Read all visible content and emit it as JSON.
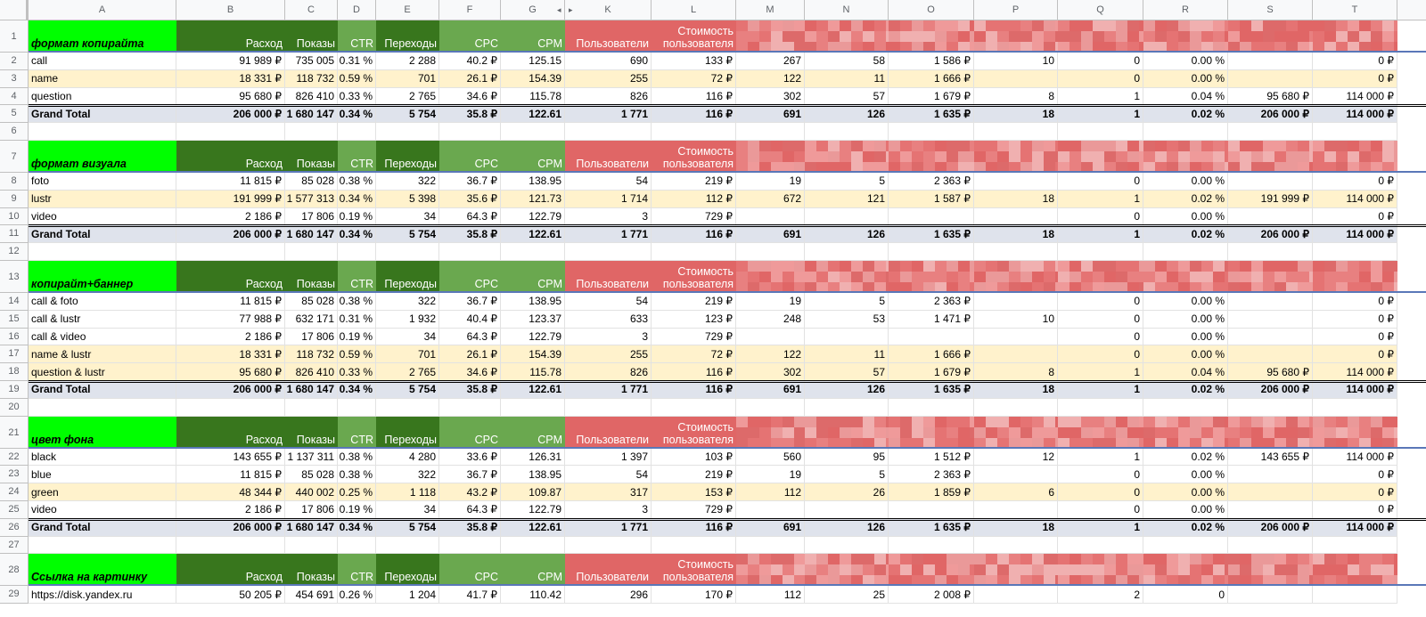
{
  "columns": [
    "A",
    "B",
    "C",
    "D",
    "E",
    "F",
    "G",
    "K",
    "L",
    "M",
    "N",
    "O",
    "P",
    "Q",
    "R",
    "S",
    "T"
  ],
  "colors": {
    "title_green": "#00ff00",
    "dark_green": "#38761d",
    "mid_green": "#6aa84f",
    "red_header": "#e06666",
    "light_red": "#ea9999",
    "row_yellow": "#fff2cc",
    "total_gray": "#dfe3ec"
  },
  "headers": {
    "spend": "Расход",
    "impressions": "Показы",
    "ctr": "CTR",
    "clicks": "Переходы",
    "cpc": "CPC",
    "cpm": "CPM",
    "users": "Пользователи",
    "user_cost_line1": "Стоимость",
    "user_cost_line2": "пользователя"
  },
  "rows": [
    {
      "num": "1",
      "type": "header",
      "title": "формат копирайта"
    },
    {
      "num": "2",
      "type": "data",
      "shade": "white",
      "cells": [
        "call",
        "91 989 ₽",
        "735 005",
        "0.31 %",
        "2 288",
        "40.2 ₽",
        "125.15",
        "690",
        "133 ₽",
        "267",
        "58",
        "1 586 ₽",
        "10",
        "0",
        "0.00 %",
        "",
        "0 ₽"
      ]
    },
    {
      "num": "3",
      "type": "data",
      "shade": "yellow",
      "cells": [
        "name",
        "18 331 ₽",
        "118 732",
        "0.59 %",
        "701",
        "26.1 ₽",
        "154.39",
        "255",
        "72 ₽",
        "122",
        "11",
        "1 666 ₽",
        "",
        "0",
        "0.00 %",
        "",
        "0 ₽"
      ]
    },
    {
      "num": "4",
      "type": "data",
      "shade": "white",
      "cells": [
        "question",
        "95 680 ₽",
        "826 410",
        "0.33 %",
        "2 765",
        "34.6 ₽",
        "115.78",
        "826",
        "116 ₽",
        "302",
        "57",
        "1 679 ₽",
        "8",
        "1",
        "0.04 %",
        "95 680 ₽",
        "114 000 ₽"
      ]
    },
    {
      "num": "5",
      "type": "total",
      "cells": [
        "Grand Total",
        "206 000 ₽",
        "1 680 147",
        "0.34 %",
        "5 754",
        "35.8 ₽",
        "122.61",
        "1 771",
        "116 ₽",
        "691",
        "126",
        "1 635 ₽",
        "18",
        "1",
        "0.02 %",
        "206 000 ₽",
        "114 000 ₽"
      ]
    },
    {
      "num": "6",
      "type": "empty"
    },
    {
      "num": "7",
      "type": "header",
      "title": "формат визуала"
    },
    {
      "num": "8",
      "type": "data",
      "shade": "white",
      "cells": [
        "foto",
        "11 815 ₽",
        "85 028",
        "0.38 %",
        "322",
        "36.7 ₽",
        "138.95",
        "54",
        "219 ₽",
        "19",
        "5",
        "2 363 ₽",
        "",
        "0",
        "0.00 %",
        "",
        "0 ₽"
      ]
    },
    {
      "num": "9",
      "type": "data",
      "shade": "yellow",
      "cells": [
        "lustr",
        "191 999 ₽",
        "1 577 313",
        "0.34 %",
        "5 398",
        "35.6 ₽",
        "121.73",
        "1 714",
        "112 ₽",
        "672",
        "121",
        "1 587 ₽",
        "18",
        "1",
        "0.02 %",
        "191 999 ₽",
        "114 000 ₽"
      ]
    },
    {
      "num": "10",
      "type": "data",
      "shade": "white",
      "cells": [
        "video",
        "2 186 ₽",
        "17 806",
        "0.19 %",
        "34",
        "64.3 ₽",
        "122.79",
        "3",
        "729 ₽",
        "",
        "",
        "",
        "",
        "0",
        "0.00 %",
        "",
        "0 ₽"
      ]
    },
    {
      "num": "11",
      "type": "total",
      "cells": [
        "Grand Total",
        "206 000 ₽",
        "1 680 147",
        "0.34 %",
        "5 754",
        "35.8 ₽",
        "122.61",
        "1 771",
        "116 ₽",
        "691",
        "126",
        "1 635 ₽",
        "18",
        "1",
        "0.02 %",
        "206 000 ₽",
        "114 000 ₽"
      ]
    },
    {
      "num": "12",
      "type": "empty"
    },
    {
      "num": "13",
      "type": "header",
      "title": "копирайт+баннер"
    },
    {
      "num": "14",
      "type": "data",
      "shade": "white",
      "cells": [
        "call & foto",
        "11 815 ₽",
        "85 028",
        "0.38 %",
        "322",
        "36.7 ₽",
        "138.95",
        "54",
        "219 ₽",
        "19",
        "5",
        "2 363 ₽",
        "",
        "0",
        "0.00 %",
        "",
        "0 ₽"
      ]
    },
    {
      "num": "15",
      "type": "data",
      "shade": "white",
      "cells": [
        "call & lustr",
        "77 988 ₽",
        "632 171",
        "0.31 %",
        "1 932",
        "40.4 ₽",
        "123.37",
        "633",
        "123 ₽",
        "248",
        "53",
        "1 471 ₽",
        "10",
        "0",
        "0.00 %",
        "",
        "0 ₽"
      ]
    },
    {
      "num": "16",
      "type": "data",
      "shade": "white",
      "cells": [
        "call & video",
        "2 186 ₽",
        "17 806",
        "0.19 %",
        "34",
        "64.3 ₽",
        "122.79",
        "3",
        "729 ₽",
        "",
        "",
        "",
        "",
        "0",
        "0.00 %",
        "",
        "0 ₽"
      ]
    },
    {
      "num": "17",
      "type": "data",
      "shade": "yellow",
      "cells": [
        "name & lustr",
        "18 331 ₽",
        "118 732",
        "0.59 %",
        "701",
        "26.1 ₽",
        "154.39",
        "255",
        "72 ₽",
        "122",
        "11",
        "1 666 ₽",
        "",
        "0",
        "0.00 %",
        "",
        "0 ₽"
      ]
    },
    {
      "num": "18",
      "type": "data",
      "shade": "yellow",
      "cells": [
        "question & lustr",
        "95 680 ₽",
        "826 410",
        "0.33 %",
        "2 765",
        "34.6 ₽",
        "115.78",
        "826",
        "116 ₽",
        "302",
        "57",
        "1 679 ₽",
        "8",
        "1",
        "0.04 %",
        "95 680 ₽",
        "114 000 ₽"
      ]
    },
    {
      "num": "19",
      "type": "total",
      "cells": [
        "Grand Total",
        "206 000 ₽",
        "1 680 147",
        "0.34 %",
        "5 754",
        "35.8 ₽",
        "122.61",
        "1 771",
        "116 ₽",
        "691",
        "126",
        "1 635 ₽",
        "18",
        "1",
        "0.02 %",
        "206 000 ₽",
        "114 000 ₽"
      ]
    },
    {
      "num": "20",
      "type": "empty"
    },
    {
      "num": "21",
      "type": "header",
      "title": "цвет фона"
    },
    {
      "num": "22",
      "type": "data",
      "shade": "white",
      "cells": [
        "black",
        "143 655 ₽",
        "1 137 311",
        "0.38 %",
        "4 280",
        "33.6 ₽",
        "126.31",
        "1 397",
        "103 ₽",
        "560",
        "95",
        "1 512 ₽",
        "12",
        "1",
        "0.02 %",
        "143 655 ₽",
        "114 000 ₽"
      ]
    },
    {
      "num": "23",
      "type": "data",
      "shade": "white",
      "cells": [
        "blue",
        "11 815 ₽",
        "85 028",
        "0.38 %",
        "322",
        "36.7 ₽",
        "138.95",
        "54",
        "219 ₽",
        "19",
        "5",
        "2 363 ₽",
        "",
        "0",
        "0.00 %",
        "",
        "0 ₽"
      ]
    },
    {
      "num": "24",
      "type": "data",
      "shade": "yellow",
      "cells": [
        "green",
        "48 344 ₽",
        "440 002",
        "0.25 %",
        "1 118",
        "43.2 ₽",
        "109.87",
        "317",
        "153 ₽",
        "112",
        "26",
        "1 859 ₽",
        "6",
        "0",
        "0.00 %",
        "",
        "0 ₽"
      ]
    },
    {
      "num": "25",
      "type": "data",
      "shade": "white",
      "cells": [
        "video",
        "2 186 ₽",
        "17 806",
        "0.19 %",
        "34",
        "64.3 ₽",
        "122.79",
        "3",
        "729 ₽",
        "",
        "",
        "",
        "",
        "0",
        "0.00 %",
        "",
        "0 ₽"
      ]
    },
    {
      "num": "26",
      "type": "total",
      "cells": [
        "Grand Total",
        "206 000 ₽",
        "1 680 147",
        "0.34 %",
        "5 754",
        "35.8 ₽",
        "122.61",
        "1 771",
        "116 ₽",
        "691",
        "126",
        "1 635 ₽",
        "18",
        "1",
        "0.02 %",
        "206 000 ₽",
        "114 000 ₽"
      ]
    },
    {
      "num": "27",
      "type": "empty"
    },
    {
      "num": "28",
      "type": "header",
      "title": "Ссылка на картинку"
    },
    {
      "num": "29",
      "type": "data",
      "shade": "white",
      "cells": [
        "https://disk.yandex.ru",
        "50 205 ₽",
        "454 691",
        "0.26 %",
        "1 204",
        "41.7 ₽",
        "110.42",
        "296",
        "170 ₽",
        "112",
        "25",
        "2 008 ₽",
        "",
        "2",
        "0",
        "",
        ""
      ]
    }
  ]
}
